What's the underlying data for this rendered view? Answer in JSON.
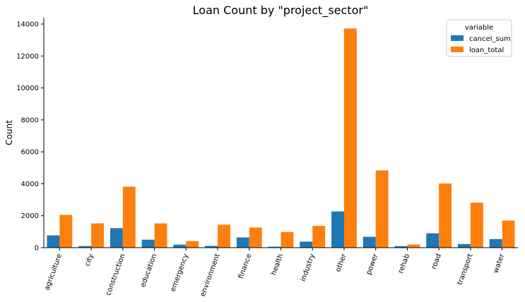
{
  "chart_data": {
    "type": "bar",
    "title": "Loan Count by \"project_sector\"",
    "xlabel": "",
    "ylabel": "Count",
    "ylim": [
      0,
      14400
    ],
    "yticks": [
      0,
      2000,
      4000,
      6000,
      8000,
      10000,
      12000,
      14000
    ],
    "categories": [
      "agriculture",
      "city",
      "construction",
      "education",
      "emergency",
      "environment",
      "finance",
      "health",
      "industry",
      "other",
      "power",
      "rehab",
      "road",
      "transport",
      "water"
    ],
    "series": [
      {
        "name": "cancel_sum",
        "color": "#1f77b4",
        "values": [
          770,
          100,
          1220,
          500,
          190,
          110,
          640,
          60,
          380,
          2270,
          680,
          100,
          900,
          230,
          540
        ]
      },
      {
        "name": "loan_total",
        "color": "#ff7f0e",
        "values": [
          2050,
          1520,
          3820,
          1520,
          410,
          1440,
          1260,
          980,
          1360,
          13720,
          4840,
          200,
          4020,
          2820,
          1700
        ]
      }
    ],
    "grid": false,
    "legend": {
      "title": "variable",
      "placement": "top-right"
    }
  }
}
